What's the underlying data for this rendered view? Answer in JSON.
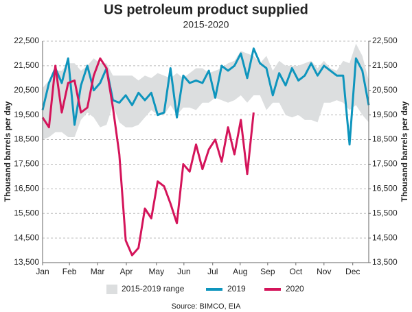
{
  "chart_data": {
    "type": "line",
    "title": "US petroleum product supplied",
    "subtitle": "2015-2020",
    "source": "Source: BIMCO, EIA",
    "ylabel": "Thousand barrels per day",
    "y2label": "Thousand barrels per day",
    "x": [
      0,
      1,
      2,
      3,
      4,
      5,
      6,
      7,
      8,
      9,
      10,
      11,
      12,
      13,
      14,
      15,
      16,
      17,
      18,
      19,
      20,
      21,
      22,
      23,
      24,
      25,
      26,
      27,
      28,
      29,
      30,
      31,
      32,
      33,
      34,
      35,
      36,
      37,
      38,
      39,
      40,
      41,
      42,
      43,
      44,
      45,
      46,
      47,
      48,
      49,
      50,
      51
    ],
    "xlim": [
      0,
      51
    ],
    "xticks": [
      {
        "value": 0,
        "label": "Jan"
      },
      {
        "value": 4.2,
        "label": "Feb"
      },
      {
        "value": 8.6,
        "label": "Mar"
      },
      {
        "value": 13.1,
        "label": "Apr"
      },
      {
        "value": 17.8,
        "label": "May"
      },
      {
        "value": 22.1,
        "label": "Jun"
      },
      {
        "value": 26.6,
        "label": "Jul"
      },
      {
        "value": 30.9,
        "label": "Aug"
      },
      {
        "value": 35.2,
        "label": "Sep"
      },
      {
        "value": 39.6,
        "label": "Oct"
      },
      {
        "value": 44.0,
        "label": "Nov"
      },
      {
        "value": 48.5,
        "label": "Dec"
      }
    ],
    "ylim": [
      13500,
      22500
    ],
    "yticks": [
      {
        "value": 13500,
        "label": "13,500"
      },
      {
        "value": 14500,
        "label": "14,500"
      },
      {
        "value": 15500,
        "label": "15,500"
      },
      {
        "value": 16500,
        "label": "16,500"
      },
      {
        "value": 17500,
        "label": "17,500"
      },
      {
        "value": 18500,
        "label": "18,500"
      },
      {
        "value": 19500,
        "label": "19,500"
      },
      {
        "value": 20500,
        "label": "20,500"
      },
      {
        "value": 21500,
        "label": "21,500"
      },
      {
        "value": 22500,
        "label": "22,500"
      }
    ],
    "y2lim": [
      13500,
      22500
    ],
    "y2ticks": [
      {
        "value": 13500,
        "label": "13,500"
      },
      {
        "value": 14500,
        "label": "14,500"
      },
      {
        "value": 15500,
        "label": "15,500"
      },
      {
        "value": 16500,
        "label": "16,500"
      },
      {
        "value": 17500,
        "label": "17,500"
      },
      {
        "value": 18500,
        "label": "18,500"
      },
      {
        "value": 19500,
        "label": "19,500"
      },
      {
        "value": 20500,
        "label": "20,500"
      },
      {
        "value": 21500,
        "label": "21,500"
      },
      {
        "value": 22500,
        "label": "22,500"
      }
    ],
    "grid": true,
    "band": {
      "name": "2015-2019 range",
      "color": "#dcdedf",
      "upper": [
        20600,
        20900,
        21300,
        21300,
        21600,
        21600,
        21300,
        21500,
        21800,
        21600,
        21600,
        21100,
        21100,
        21100,
        21100,
        20900,
        21100,
        21000,
        21200,
        21100,
        21000,
        21200,
        21000,
        21200,
        21400,
        21400,
        21200,
        21300,
        21400,
        21600,
        21700,
        22100,
        22000,
        21900,
        21600,
        21900,
        21300,
        21700,
        21500,
        21500,
        21500,
        21600,
        21700,
        21400,
        21700,
        21400,
        21300,
        21700,
        21600,
        22400,
        21900,
        20900
      ],
      "lower": [
        18500,
        18600,
        18800,
        18800,
        18600,
        18600,
        19300,
        19600,
        19400,
        19000,
        19100,
        19900,
        19200,
        19000,
        19000,
        19100,
        19400,
        19700,
        19500,
        19500,
        19900,
        19500,
        19800,
        19800,
        19700,
        20000,
        20000,
        20200,
        20100,
        20000,
        20100,
        20300,
        20000,
        20300,
        20300,
        19700,
        20000,
        20000,
        19500,
        19400,
        19500,
        19300,
        19300,
        19200,
        20000,
        20000,
        20100,
        20000,
        19700,
        19900,
        19500,
        19200
      ]
    },
    "series": [
      {
        "name": "2019",
        "color": "#0e95bd",
        "values": [
          19700,
          20800,
          21400,
          20800,
          21800,
          19100,
          20700,
          21500,
          20500,
          20800,
          21400,
          20100,
          20000,
          20300,
          19900,
          20400,
          20100,
          20400,
          19500,
          19600,
          21400,
          19400,
          21100,
          20800,
          20900,
          20800,
          21300,
          20200,
          21500,
          21300,
          21500,
          22000,
          21000,
          22200,
          21600,
          21400,
          20300,
          21200,
          20700,
          21400,
          20900,
          21100,
          21600,
          21100,
          21500,
          21300,
          21100,
          21100,
          18300,
          21800,
          21300,
          19900
        ]
      },
      {
        "name": "2020",
        "color": "#d4145a",
        "values": [
          19400,
          19000,
          21500,
          19600,
          20800,
          20900,
          19600,
          19800,
          21100,
          21800,
          21400,
          19800,
          17900,
          14400,
          13800,
          14100,
          15700,
          15300,
          16800,
          16600,
          15900,
          15100,
          17500,
          17200,
          18300,
          17300,
          18100,
          18500,
          17600,
          19000,
          17900,
          19300,
          17100,
          19600,
          null,
          null,
          null,
          null,
          null,
          null,
          null,
          null,
          null,
          null,
          null,
          null,
          null,
          null,
          null,
          null,
          null,
          null
        ]
      }
    ]
  }
}
